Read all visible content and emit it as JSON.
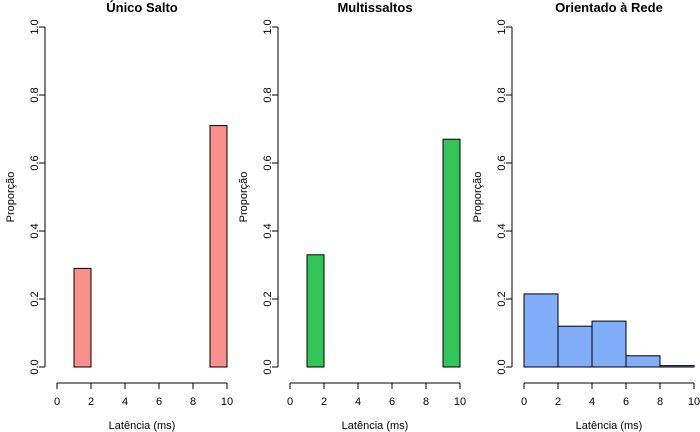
{
  "chart_data": [
    {
      "type": "bar",
      "title": "Único Salto",
      "xlabel": "Latência (ms)",
      "ylabel": "Proporção",
      "xlim": [
        0,
        10
      ],
      "ylim": [
        0,
        1.0
      ],
      "x_ticks": [
        "0",
        "2",
        "4",
        "6",
        "8",
        "10"
      ],
      "y_ticks": [
        "0.0",
        "0.2",
        "0.4",
        "0.6",
        "0.8",
        "1.0"
      ],
      "color": "#F8918B",
      "bins": [
        {
          "x0": 1,
          "x1": 2,
          "value": 0.29
        },
        {
          "x0": 2,
          "x1": 3,
          "value": 0
        },
        {
          "x0": 3,
          "x1": 4,
          "value": 0
        },
        {
          "x0": 4,
          "x1": 5,
          "value": 0
        },
        {
          "x0": 5,
          "x1": 6,
          "value": 0
        },
        {
          "x0": 6,
          "x1": 7,
          "value": 0
        },
        {
          "x0": 7,
          "x1": 8,
          "value": 0
        },
        {
          "x0": 8,
          "x1": 9,
          "value": 0
        },
        {
          "x0": 9,
          "x1": 10,
          "value": 0.71
        }
      ]
    },
    {
      "type": "bar",
      "title": "Multissaltos",
      "xlabel": "Latência (ms)",
      "ylabel": "Proporção",
      "xlim": [
        0,
        10
      ],
      "ylim": [
        0,
        1.0
      ],
      "x_ticks": [
        "0",
        "2",
        "4",
        "6",
        "8",
        "10"
      ],
      "y_ticks": [
        "0.0",
        "0.2",
        "0.4",
        "0.6",
        "0.8",
        "1.0"
      ],
      "color": "#33C45A",
      "bins": [
        {
          "x0": 1,
          "x1": 2,
          "value": 0.33
        },
        {
          "x0": 2,
          "x1": 3,
          "value": 0
        },
        {
          "x0": 3,
          "x1": 4,
          "value": 0
        },
        {
          "x0": 4,
          "x1": 5,
          "value": 0
        },
        {
          "x0": 5,
          "x1": 6,
          "value": 0
        },
        {
          "x0": 6,
          "x1": 7,
          "value": 0
        },
        {
          "x0": 7,
          "x1": 8,
          "value": 0
        },
        {
          "x0": 8,
          "x1": 9,
          "value": 0
        },
        {
          "x0": 9,
          "x1": 10,
          "value": 0.67
        }
      ]
    },
    {
      "type": "bar",
      "title": "Orientado à Rede",
      "xlabel": "Latência (ms)",
      "ylabel": "Proporção",
      "xlim": [
        0,
        10
      ],
      "ylim": [
        0,
        1.0
      ],
      "x_ticks": [
        "0",
        "2",
        "4",
        "6",
        "8",
        "10"
      ],
      "y_ticks": [
        "0.0",
        "0.2",
        "0.4",
        "0.6",
        "0.8",
        "1.0"
      ],
      "color": "#82ADF9",
      "bins": [
        {
          "x0": 0,
          "x1": 2,
          "value": 0.215
        },
        {
          "x0": 2,
          "x1": 4,
          "value": 0.12
        },
        {
          "x0": 4,
          "x1": 6,
          "value": 0.135
        },
        {
          "x0": 6,
          "x1": 8,
          "value": 0.033
        },
        {
          "x0": 8,
          "x1": 10,
          "value": 0.004
        }
      ]
    }
  ]
}
